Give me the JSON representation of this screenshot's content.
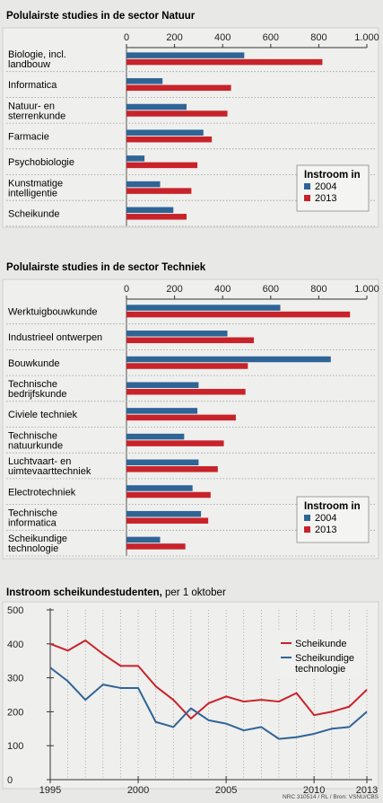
{
  "colors": {
    "c2004": "#2f6496",
    "c2013": "#c8232a",
    "grid": "#9a9a9a",
    "frame": "#cfcfcf"
  },
  "chart_data": [
    {
      "type": "bar",
      "orientation": "horizontal",
      "title": "Polulairste studies in de sector Natuur",
      "categories": [
        [
          "Biologie, incl.",
          "landbouw"
        ],
        [
          "Informatica"
        ],
        [
          "Natuur- en",
          "sterrenkunde"
        ],
        [
          "Farmacie"
        ],
        [
          "Psychobiologie"
        ],
        [
          "Kunstmatige",
          "intelligentie"
        ],
        [
          "Scheikunde"
        ]
      ],
      "series": [
        {
          "name": "2004",
          "values": [
            490,
            150,
            250,
            320,
            75,
            140,
            195
          ]
        },
        {
          "name": "2013",
          "values": [
            815,
            435,
            420,
            355,
            295,
            270,
            250
          ]
        }
      ],
      "xlim": [
        0,
        1000
      ],
      "xticks": [
        "0",
        "200",
        "400",
        "600",
        "800",
        "1.000"
      ],
      "legend": {
        "title": "Instroom in",
        "placement": "bottom-right"
      }
    },
    {
      "type": "bar",
      "orientation": "horizontal",
      "title": "Polulairste studies in de sector Techniek",
      "categories": [
        [
          "Werktuigbouwkunde"
        ],
        [
          "Industrieel ontwerpen"
        ],
        [
          "Bouwkunde"
        ],
        [
          "Technische",
          "bedrijfskunde"
        ],
        [
          "Civiele techniek"
        ],
        [
          "Technische",
          "natuurkunde"
        ],
        [
          "Luchtvaart- en",
          "uimtevaarttechniek"
        ],
        [
          "Electrotechniek"
        ],
        [
          "Technische",
          "informatica"
        ],
        [
          "Scheikundige",
          "technologie"
        ]
      ],
      "series": [
        {
          "name": "2004",
          "values": [
            640,
            420,
            850,
            300,
            295,
            240,
            300,
            275,
            310,
            140
          ]
        },
        {
          "name": "2013",
          "values": [
            930,
            530,
            505,
            495,
            455,
            405,
            380,
            350,
            340,
            245
          ]
        }
      ],
      "xlim": [
        0,
        1000
      ],
      "xticks": [
        "0",
        "200",
        "400",
        "600",
        "800",
        "1.000"
      ],
      "legend": {
        "title": "Instroom in",
        "placement": "bottom-right"
      }
    },
    {
      "type": "line",
      "title": "Instroom scheikundestudenten,",
      "subtitle": " per 1 oktober",
      "x": [
        1995,
        1996,
        1997,
        1998,
        1999,
        2000,
        2001,
        2002,
        2003,
        2004,
        2005,
        2006,
        2007,
        2008,
        2009,
        2010,
        2011,
        2012,
        2013
      ],
      "series": [
        {
          "name": "Scheikunde",
          "values": [
            400,
            380,
            410,
            370,
            335,
            335,
            275,
            235,
            180,
            225,
            245,
            230,
            235,
            230,
            255,
            190,
            200,
            215,
            265
          ]
        },
        {
          "name": "Scheikundige technologie",
          "label_lines": [
            "Scheikundige",
            "technologie"
          ],
          "values": [
            330,
            290,
            235,
            280,
            270,
            270,
            170,
            155,
            210,
            175,
            165,
            145,
            155,
            120,
            125,
            135,
            150,
            155,
            200
          ]
        }
      ],
      "ylim": [
        0,
        500
      ],
      "yticks": [
        0,
        100,
        200,
        300,
        400,
        500
      ],
      "xticks": [
        1995,
        2000,
        2005,
        2010,
        2013
      ],
      "grid": "dotted vertical",
      "legend": {
        "placement": "right"
      }
    }
  ],
  "source": "NRC 310514 / RL / Bron: VSNU/CBS"
}
